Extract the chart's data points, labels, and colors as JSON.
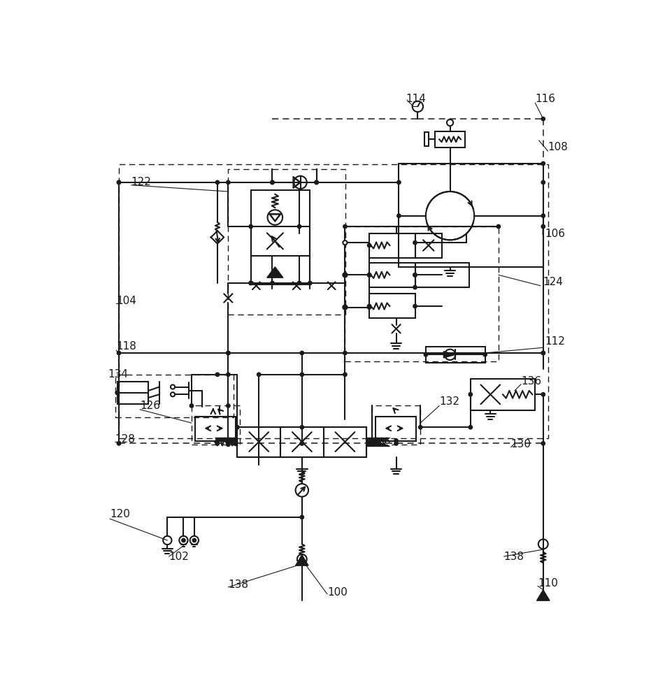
{
  "bg_color": "#ffffff",
  "lc": "#1a1a1a",
  "lw": 1.5,
  "fig_w": 9.41,
  "fig_h": 10.0,
  "dpi": 100,
  "labels": [
    [
      598,
      28,
      "114"
    ],
    [
      838,
      28,
      "116"
    ],
    [
      862,
      118,
      "108"
    ],
    [
      856,
      278,
      "106"
    ],
    [
      856,
      478,
      "112"
    ],
    [
      852,
      368,
      "124"
    ],
    [
      60,
      403,
      "104"
    ],
    [
      60,
      488,
      "118"
    ],
    [
      88,
      183,
      "122"
    ],
    [
      44,
      540,
      "134"
    ],
    [
      104,
      598,
      "126"
    ],
    [
      58,
      660,
      "128"
    ],
    [
      660,
      590,
      "132"
    ],
    [
      812,
      553,
      "136"
    ],
    [
      793,
      670,
      "130"
    ],
    [
      843,
      928,
      "110"
    ],
    [
      780,
      878,
      "138"
    ],
    [
      452,
      945,
      "100"
    ],
    [
      158,
      878,
      "102"
    ],
    [
      48,
      800,
      "120"
    ],
    [
      268,
      930,
      "138"
    ]
  ]
}
